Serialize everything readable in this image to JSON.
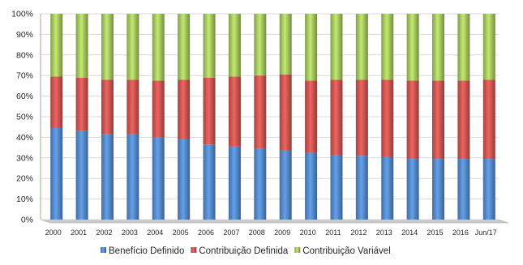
{
  "chart_data": {
    "type": "bar",
    "stacked": true,
    "percent": true,
    "categories": [
      "2000",
      "2001",
      "2002",
      "2003",
      "2004",
      "2005",
      "2006",
      "2007",
      "2008",
      "2009",
      "2010",
      "2011",
      "2012",
      "2013",
      "2014",
      "2015",
      "2016",
      "Jun/17"
    ],
    "series": [
      {
        "name": "Benefício Definido",
        "color": "#4f81bd",
        "values": [
          44.5,
          43,
          41.5,
          41.5,
          40,
          39,
          36.5,
          35.5,
          34.5,
          33.5,
          32.5,
          31.5,
          31,
          30.5,
          29.5,
          29.5,
          29.5,
          29.5
        ]
      },
      {
        "name": "Contribuição Definida",
        "color": "#c0504d",
        "values": [
          25,
          26,
          26.5,
          26.5,
          27.5,
          29,
          32.5,
          34,
          35.5,
          37,
          35,
          36.5,
          37,
          37.5,
          38,
          38,
          38,
          38.5
        ]
      },
      {
        "name": "Contribuição Variável",
        "color": "#9bbb59",
        "values": [
          30.5,
          31,
          32,
          32,
          32.5,
          32,
          31,
          30.5,
          30,
          29.5,
          32.5,
          32,
          32,
          32,
          32.5,
          32.5,
          32.5,
          32
        ]
      }
    ],
    "yticks": [
      "0%",
      "10%",
      "20%",
      "30%",
      "40%",
      "50%",
      "60%",
      "70%",
      "80%",
      "90%",
      "100%"
    ],
    "ylim": [
      0,
      100
    ],
    "grid": true,
    "legend_position": "bottom"
  }
}
